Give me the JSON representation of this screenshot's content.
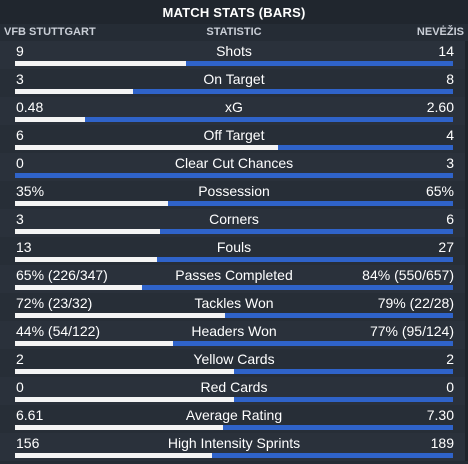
{
  "title": "MATCH STATS (BARS)",
  "headers": {
    "home_team": "VFB STUTTGART",
    "statistic": "STATISTIC",
    "away_team": "NEVĖŽIS"
  },
  "colors": {
    "home_bar": "#f4f4f4",
    "away_bar": "#2f63c9",
    "background": "#252c35"
  },
  "stats": [
    {
      "label": "Shots",
      "home": "9",
      "away": "14",
      "home_share": 0.39
    },
    {
      "label": "On Target",
      "home": "3",
      "away": "8",
      "home_share": 0.27
    },
    {
      "label": "xG",
      "home": "0.48",
      "away": "2.60",
      "home_share": 0.16
    },
    {
      "label": "Off Target",
      "home": "6",
      "away": "4",
      "home_share": 0.6
    },
    {
      "label": "Clear Cut Chances",
      "home": "0",
      "away": "3",
      "home_share": 0.0
    },
    {
      "label": "Possession",
      "home": "35%",
      "away": "65%",
      "home_share": 0.35
    },
    {
      "label": "Corners",
      "home": "3",
      "away": "6",
      "home_share": 0.33
    },
    {
      "label": "Fouls",
      "home": "13",
      "away": "27",
      "home_share": 0.325
    },
    {
      "label": "Passes Completed",
      "home": "65% (226/347)",
      "away": "84% (550/657)",
      "home_share": 0.29
    },
    {
      "label": "Tackles Won",
      "home": "72% (23/32)",
      "away": "79% (22/28)",
      "home_share": 0.48
    },
    {
      "label": "Headers Won",
      "home": "44% (54/122)",
      "away": "77% (95/124)",
      "home_share": 0.36
    },
    {
      "label": "Yellow Cards",
      "home": "2",
      "away": "2",
      "home_share": 0.5
    },
    {
      "label": "Red Cards",
      "home": "0",
      "away": "0",
      "home_share": 0.5
    },
    {
      "label": "Average Rating",
      "home": "6.61",
      "away": "7.30",
      "home_share": 0.475
    },
    {
      "label": "High Intensity Sprints",
      "home": "156",
      "away": "189",
      "home_share": 0.45
    }
  ]
}
